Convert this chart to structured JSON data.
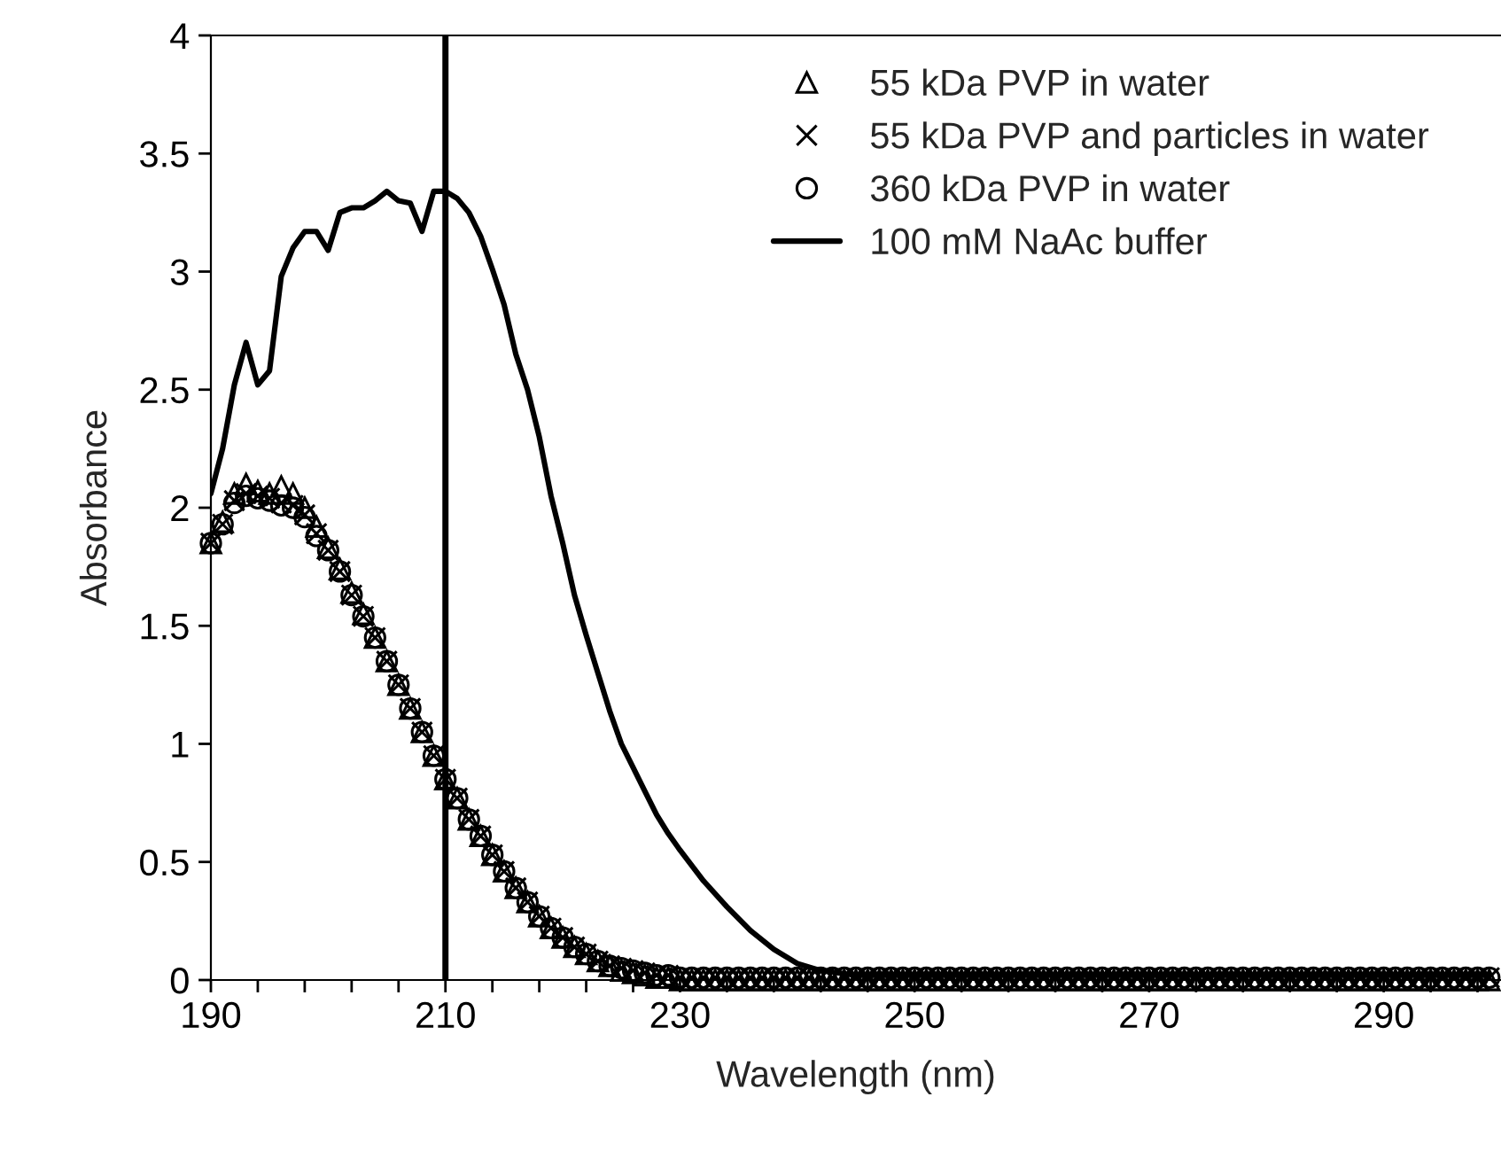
{
  "chart_data": {
    "type": "scatter",
    "xlabel": "Wavelength (nm)",
    "ylabel": "Absorbance",
    "xlim": [
      190,
      300
    ],
    "ylim": [
      0,
      4
    ],
    "xticks": [
      190,
      {
        "value": 194,
        "label": null
      },
      {
        "value": 198,
        "label": null
      },
      {
        "value": 202,
        "label": null
      },
      {
        "value": 206,
        "label": null
      },
      210,
      {
        "value": 214,
        "label": null
      },
      {
        "value": 218,
        "label": null
      },
      {
        "value": 222,
        "label": null
      },
      {
        "value": 226,
        "label": null
      },
      230,
      {
        "value": 234,
        "label": null
      },
      {
        "value": 238,
        "label": null
      },
      {
        "value": 242,
        "label": null
      },
      {
        "value": 246,
        "label": null
      },
      250,
      {
        "value": 254,
        "label": null
      },
      {
        "value": 258,
        "label": null
      },
      {
        "value": 262,
        "label": null
      },
      {
        "value": 266,
        "label": null
      },
      270,
      {
        "value": 274,
        "label": null
      },
      {
        "value": 278,
        "label": null
      },
      {
        "value": 282,
        "label": null
      },
      {
        "value": 286,
        "label": null
      },
      290,
      {
        "value": 294,
        "label": null
      },
      {
        "value": 298,
        "label": null
      }
    ],
    "yticks": [
      0,
      0.5,
      1,
      1.5,
      2,
      2.5,
      3,
      3.5,
      4
    ],
    "grid": false,
    "legend": "top right",
    "ref_lines": [
      {
        "axis": "x",
        "value": 210,
        "color": "#000000"
      }
    ],
    "x": [
      190,
      191,
      192,
      193,
      194,
      195,
      196,
      197,
      198,
      199,
      200,
      201,
      202,
      203,
      204,
      205,
      206,
      207,
      208,
      209,
      210,
      211,
      212,
      213,
      214,
      215,
      216,
      217,
      218,
      219,
      220,
      221,
      222,
      223,
      224,
      225,
      226,
      227,
      228,
      229,
      230,
      231,
      232,
      233,
      234,
      235,
      236,
      237,
      238,
      239,
      240,
      241,
      242,
      243,
      244,
      245,
      246,
      247,
      248,
      249,
      250,
      251,
      252,
      253,
      254,
      255,
      256,
      257,
      258,
      259,
      260,
      261,
      262,
      263,
      264,
      265,
      266,
      267,
      268,
      269,
      270,
      271,
      272,
      273,
      274,
      275,
      276,
      277,
      278,
      279,
      280,
      281,
      282,
      283,
      284,
      285,
      286,
      287,
      288,
      289,
      290,
      291,
      292,
      293,
      294,
      295,
      296,
      297,
      298,
      299
    ],
    "series": [
      {
        "name": "55 kDa PVP in water",
        "marker": "triangle",
        "color": "#000000",
        "values": [
          1.85,
          1.94,
          2.06,
          2.1,
          2.07,
          2.06,
          2.09,
          2.06,
          2.0,
          1.92,
          1.83,
          1.74,
          1.64,
          1.55,
          1.45,
          1.35,
          1.25,
          1.15,
          1.05,
          0.95,
          0.85,
          0.77,
          0.68,
          0.61,
          0.53,
          0.46,
          0.39,
          0.33,
          0.27,
          0.22,
          0.18,
          0.14,
          0.11,
          0.08,
          0.06,
          0.04,
          0.03,
          0.02,
          0.01,
          0.01,
          0,
          0,
          0,
          0,
          0,
          0,
          0,
          0,
          0,
          0,
          0,
          0,
          0,
          0,
          0,
          0,
          0,
          0,
          0,
          0,
          0,
          0,
          0,
          0,
          0,
          0,
          0,
          0,
          0,
          0,
          0,
          0,
          0,
          0,
          0,
          0,
          0,
          0,
          0,
          0,
          0,
          0,
          0,
          0,
          0,
          0,
          0,
          0,
          0,
          0,
          0,
          0,
          0,
          0,
          0,
          0,
          0,
          0,
          0,
          0,
          0,
          0,
          0,
          0,
          0,
          0,
          0,
          0,
          0,
          0
        ]
      },
      {
        "name": "55 kDa PVP and particles in water",
        "marker": "cross",
        "color": "#000000",
        "values": [
          1.85,
          1.93,
          2.03,
          2.06,
          2.05,
          2.04,
          2.02,
          2.01,
          1.97,
          1.89,
          1.82,
          1.73,
          1.63,
          1.54,
          1.45,
          1.35,
          1.25,
          1.15,
          1.05,
          0.95,
          0.85,
          0.77,
          0.68,
          0.61,
          0.53,
          0.46,
          0.39,
          0.33,
          0.27,
          0.22,
          0.18,
          0.14,
          0.11,
          0.08,
          0.06,
          0.05,
          0.04,
          0.03,
          0.02,
          0.02,
          0.01,
          0.01,
          0.01,
          0.01,
          0.01,
          0.01,
          0.01,
          0.01,
          0.01,
          0.01,
          0.01,
          0.01,
          0.01,
          0.01,
          0.01,
          0.01,
          0.01,
          0.01,
          0.01,
          0.01,
          0.01,
          0.01,
          0.01,
          0.01,
          0.01,
          0.01,
          0.01,
          0.01,
          0.01,
          0.01,
          0.01,
          0.01,
          0.01,
          0.01,
          0.01,
          0.01,
          0.01,
          0.01,
          0.01,
          0.01,
          0.01,
          0.01,
          0.01,
          0.01,
          0.01,
          0.01,
          0.01,
          0.01,
          0.01,
          0.01,
          0.01,
          0.01,
          0.01,
          0.01,
          0.01,
          0.01,
          0.01,
          0.01,
          0.01,
          0.01,
          0.01,
          0.01,
          0.01,
          0.01,
          0.01,
          0.01,
          0.01,
          0.01,
          0.01,
          0.01
        ]
      },
      {
        "name": "360 kDa PVP in water",
        "marker": "circle",
        "color": "#000000",
        "values": [
          1.85,
          1.93,
          2.02,
          2.05,
          2.04,
          2.03,
          2.01,
          2.0,
          1.96,
          1.88,
          1.82,
          1.73,
          1.63,
          1.54,
          1.45,
          1.35,
          1.25,
          1.15,
          1.05,
          0.95,
          0.85,
          0.77,
          0.68,
          0.61,
          0.53,
          0.46,
          0.39,
          0.33,
          0.27,
          0.22,
          0.18,
          0.14,
          0.11,
          0.08,
          0.06,
          0.05,
          0.04,
          0.03,
          0.02,
          0.02,
          0.01,
          0.01,
          0.01,
          0.01,
          0.01,
          0.01,
          0.01,
          0.01,
          0.01,
          0.01,
          0.01,
          0.01,
          0.01,
          0.01,
          0.01,
          0.01,
          0.01,
          0.01,
          0.01,
          0.01,
          0.01,
          0.01,
          0.01,
          0.01,
          0.01,
          0.01,
          0.01,
          0.01,
          0.01,
          0.01,
          0.01,
          0.01,
          0.01,
          0.01,
          0.01,
          0.01,
          0.01,
          0.01,
          0.01,
          0.01,
          0.01,
          0.01,
          0.01,
          0.01,
          0.01,
          0.01,
          0.01,
          0.01,
          0.01,
          0.01,
          0.01,
          0.01,
          0.01,
          0.01,
          0.01,
          0.01,
          0.01,
          0.01,
          0.01,
          0.01,
          0.01,
          0.01,
          0.01,
          0.01,
          0.01,
          0.01,
          0.01,
          0.01,
          0.01,
          0.01
        ]
      },
      {
        "name": "100 mM NaAc buffer",
        "type": "line",
        "marker": "none",
        "color": "#000000",
        "x": [
          190,
          191,
          192,
          193,
          194,
          195,
          196,
          197,
          198,
          199,
          200,
          201,
          202,
          203,
          204,
          205,
          206,
          207,
          208,
          209,
          210,
          211,
          212,
          213,
          214,
          215,
          216,
          217,
          218,
          219,
          220,
          221,
          222,
          223,
          224,
          225,
          226,
          227,
          228,
          229,
          230,
          232,
          234,
          236,
          238,
          240,
          242,
          245,
          250,
          260,
          270,
          280,
          290,
          299
        ],
        "values": [
          2.06,
          2.25,
          2.52,
          2.7,
          2.52,
          2.58,
          2.98,
          3.1,
          3.17,
          3.17,
          3.09,
          3.25,
          3.27,
          3.27,
          3.3,
          3.34,
          3.3,
          3.29,
          3.17,
          3.34,
          3.34,
          3.31,
          3.25,
          3.15,
          3.01,
          2.86,
          2.65,
          2.5,
          2.3,
          2.05,
          1.85,
          1.63,
          1.46,
          1.3,
          1.14,
          1.0,
          0.9,
          0.8,
          0.7,
          0.62,
          0.55,
          0.42,
          0.31,
          0.21,
          0.13,
          0.07,
          0.04,
          0.02,
          0.02,
          0.02,
          0.02,
          0.02,
          0.02,
          0.02
        ]
      }
    ]
  }
}
